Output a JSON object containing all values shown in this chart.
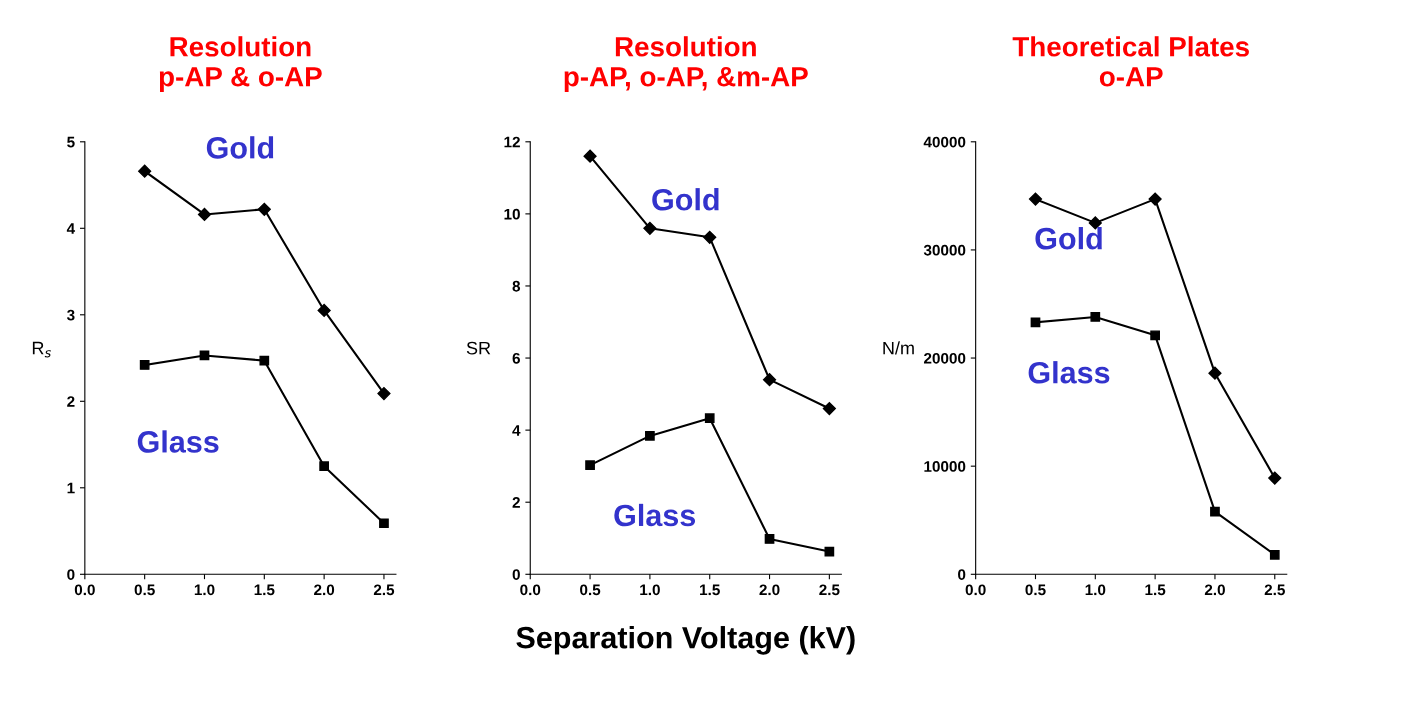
{
  "chart_data": [
    {
      "type": "line",
      "title": "Resolution\np-AP & o-AP",
      "ylabel": "R$_{s}$",
      "x": [
        0.5,
        1.0,
        1.5,
        2.0,
        2.5
      ],
      "xlim": [
        0,
        2.6
      ],
      "xticks": [
        {
          "value": 0,
          "label": "0.0"
        },
        0.5,
        {
          "value": 1,
          "label": "1.0"
        },
        1.5,
        {
          "value": 2,
          "label": "2.0"
        },
        2.5
      ],
      "ylim": [
        0,
        5
      ],
      "yticks": [
        0,
        1,
        2,
        3,
        4,
        5
      ],
      "grid": false,
      "line_style": "solid",
      "series": [
        {
          "color": "#000000",
          "marker": "diamond",
          "values": [
            4.66,
            4.16,
            4.22,
            3.05,
            2.09
          ]
        },
        {
          "color": "#000000",
          "marker": "square",
          "values": [
            2.42,
            2.53,
            2.47,
            1.25,
            0.59
          ]
        }
      ],
      "annotations": [
        "Gold",
        "Glass"
      ]
    },
    {
      "type": "line",
      "title": "Resolution\np-AP, o-AP, &m-AP",
      "ylabel": "SR",
      "xlabel": "Separation Voltage (kV)",
      "x": [
        0.5,
        1.0,
        1.5,
        2.0,
        2.5
      ],
      "xlim": [
        0,
        2.6
      ],
      "xticks": [
        {
          "value": 0,
          "label": "0.0"
        },
        0.5,
        {
          "value": 1,
          "label": "1.0"
        },
        1.5,
        {
          "value": 2,
          "label": "2.0"
        },
        2.5
      ],
      "ylim": [
        0,
        12
      ],
      "yticks": [
        0,
        2,
        4,
        6,
        8,
        10,
        12
      ],
      "grid": false,
      "line_style": "solid",
      "series": [
        {
          "color": "#000000",
          "marker": "diamond",
          "values": [
            11.6,
            9.6,
            9.35,
            5.4,
            4.6
          ]
        },
        {
          "color": "#000000",
          "marker": "square",
          "values": [
            3.03,
            3.84,
            4.33,
            0.98,
            0.63
          ]
        }
      ],
      "annotations": [
        "Gold",
        "Glass"
      ]
    },
    {
      "type": "line",
      "title": "Theoretical Plates\no-AP",
      "ylabel": "N/m",
      "x": [
        0.5,
        1.0,
        1.5,
        2.0,
        2.5
      ],
      "xlim": [
        0,
        2.6
      ],
      "xticks": [
        {
          "value": 0,
          "label": "0.0"
        },
        0.5,
        {
          "value": 1,
          "label": "1.0"
        },
        1.5,
        {
          "value": 2,
          "label": "2.0"
        },
        2.5
      ],
      "ylim": [
        0,
        40000
      ],
      "yticks": [
        0,
        10000,
        20000,
        30000,
        40000
      ],
      "grid": false,
      "line_style": "solid",
      "series": [
        {
          "color": "#000000",
          "marker": "diamond",
          "values": [
            34700,
            32500,
            34700,
            18600,
            8900
          ]
        },
        {
          "color": "#000000",
          "marker": "square",
          "values": [
            23300,
            23800,
            22100,
            5800,
            1800
          ]
        }
      ],
      "annotations": [
        "Gold",
        "Glass"
      ]
    }
  ]
}
